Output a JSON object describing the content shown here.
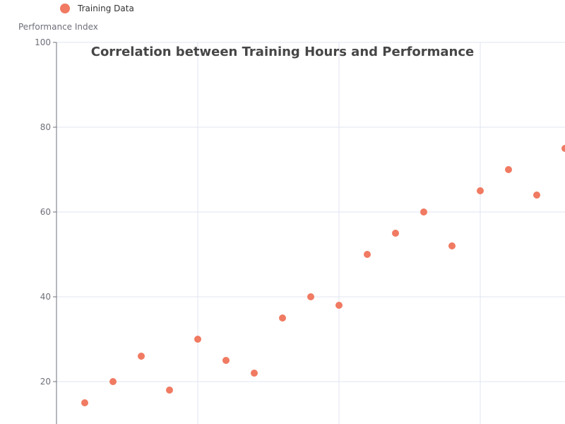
{
  "chart_data": {
    "type": "scatter",
    "title": "Correlation between Training Hours and Performance",
    "xlabel": "",
    "ylabel": "Performance Index",
    "legend": {
      "position": "top-left",
      "entries": [
        "Training Data"
      ]
    },
    "grid": true,
    "xlim": [
      0,
      18
    ],
    "ylim": [
      10,
      100
    ],
    "yticks": [
      20,
      40,
      60,
      80,
      100
    ],
    "xgrid": [
      5,
      10,
      15
    ],
    "series": [
      {
        "name": "Training Data",
        "color": "#f07a62",
        "points": [
          {
            "x": 1,
            "y": 15
          },
          {
            "x": 2,
            "y": 20
          },
          {
            "x": 3,
            "y": 26
          },
          {
            "x": 4,
            "y": 18
          },
          {
            "x": 5,
            "y": 30
          },
          {
            "x": 6,
            "y": 25
          },
          {
            "x": 7,
            "y": 22
          },
          {
            "x": 8,
            "y": 35
          },
          {
            "x": 9,
            "y": 40
          },
          {
            "x": 10,
            "y": 38
          },
          {
            "x": 11,
            "y": 50
          },
          {
            "x": 12,
            "y": 55
          },
          {
            "x": 13,
            "y": 60
          },
          {
            "x": 14,
            "y": 52
          },
          {
            "x": 15,
            "y": 65
          },
          {
            "x": 16,
            "y": 70
          },
          {
            "x": 17,
            "y": 64
          },
          {
            "x": 18,
            "y": 75
          }
        ]
      }
    ]
  }
}
